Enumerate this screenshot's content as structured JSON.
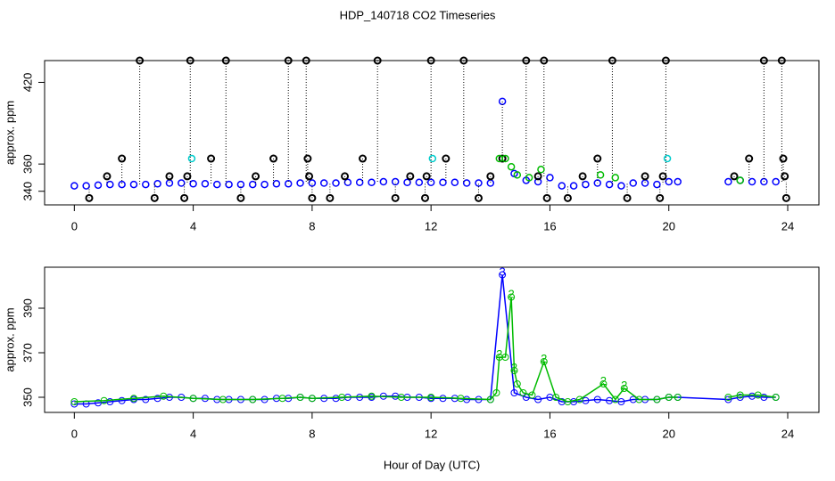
{
  "chart_data": [
    {
      "type": "scatter",
      "title": "HDP_140718  CO2 Timeseries",
      "ylabel": "approx. ppm",
      "xlim": [
        -1,
        25.05
      ],
      "xticks": [
        0,
        4,
        8,
        12,
        16,
        20,
        24
      ],
      "ylim": [
        330,
        436
      ],
      "yticks": [
        340,
        360,
        420
      ],
      "series": [
        {
          "color": "#0000ff",
          "x": [
            0,
            0.4,
            0.8,
            1.2,
            1.6,
            2,
            2.4,
            2.8,
            3.2,
            3.6,
            4,
            4.4,
            4.8,
            5.2,
            5.6,
            6,
            6.4,
            6.8,
            7.2,
            7.6,
            8,
            8.4,
            8.8,
            9.2,
            9.6,
            10,
            10.4,
            10.8,
            11.2,
            11.6,
            12,
            12.4,
            12.8,
            13.2,
            13.6,
            14,
            14.4,
            14.8,
            15.2,
            15.6,
            16,
            16.4,
            16.8,
            17.2,
            17.6,
            18,
            18.4,
            18.8,
            19.2,
            19.6,
            20,
            20.3,
            22,
            22.4,
            22.8,
            23.2,
            23.6
          ],
          "values": [
            344,
            344,
            344.5,
            345,
            345,
            345,
            345,
            345.5,
            346,
            346,
            345.5,
            345.5,
            345,
            345,
            345,
            345,
            345,
            345.5,
            345.5,
            346,
            346,
            346,
            346,
            346.5,
            346.5,
            346.5,
            347,
            347,
            346.5,
            346.5,
            346.5,
            346.5,
            346.5,
            346,
            346,
            346,
            406,
            353,
            348,
            347,
            350,
            344,
            344,
            345,
            346,
            345,
            344,
            346,
            346,
            345,
            347,
            347,
            347,
            348,
            347,
            347,
            347
          ]
        },
        {
          "color": "#000000",
          "drop_lines": true,
          "x": [
            0.5,
            1.1,
            1.6,
            2.2,
            2.7,
            3.2,
            3.7,
            3.8,
            3.9,
            4.6,
            5.1,
            5.6,
            6.1,
            6.7,
            7.2,
            7.8,
            7.85,
            7.9,
            8,
            8.6,
            9.1,
            9.7,
            10.2,
            10.8,
            11.3,
            11.8,
            11.85,
            12,
            12.5,
            13.1,
            13.6,
            14,
            14.4,
            15.2,
            15.6,
            15.8,
            15.9,
            16.6,
            17.1,
            17.6,
            18.1,
            18.6,
            19.2,
            19.7,
            19.8,
            19.9,
            22.2,
            22.7,
            23.2,
            23.8,
            23.85,
            23.9,
            23.95
          ],
          "values": [
            335,
            351,
            364,
            436,
            335,
            351,
            335,
            351,
            436,
            364,
            436,
            335,
            351,
            364,
            436,
            436,
            364,
            351,
            335,
            335,
            351,
            364,
            436,
            335,
            351,
            335,
            351,
            436,
            364,
            436,
            335,
            351,
            364,
            436,
            351,
            436,
            335,
            335,
            351,
            364,
            436,
            335,
            351,
            335,
            351,
            436,
            351,
            364,
            436,
            436,
            364,
            351,
            335
          ]
        },
        {
          "color": "#00cccc",
          "x": [
            3.95,
            12.05,
            19.95
          ],
          "values": [
            364,
            364,
            364
          ]
        },
        {
          "color": "#00bb00",
          "x": [
            14.3,
            14.5,
            14.7,
            14.9,
            15.3,
            15.7,
            17.7,
            18.2,
            22.4
          ],
          "values": [
            364,
            364,
            358,
            352,
            350,
            356,
            352,
            350,
            348
          ]
        }
      ]
    },
    {
      "type": "line",
      "ylabel": "approx. ppm",
      "xlabel": "Hour of Day (UTC)",
      "xlim": [
        -1,
        25.05
      ],
      "xticks": [
        0,
        4,
        8,
        12,
        16,
        20,
        24
      ],
      "ylim": [
        343.2,
        408.4
      ],
      "yticks": [
        350,
        370,
        390
      ],
      "series": [
        {
          "color": "#0000ff",
          "x": [
            0,
            0.4,
            0.8,
            1.2,
            1.6,
            2,
            2.4,
            2.8,
            3.2,
            3.6,
            4,
            4.4,
            4.8,
            5.2,
            5.6,
            6,
            6.4,
            6.8,
            7.2,
            7.6,
            8,
            8.4,
            8.8,
            9.2,
            9.6,
            10,
            10.4,
            10.8,
            11.2,
            11.6,
            12,
            12.4,
            12.8,
            13.2,
            13.6,
            14,
            14.4,
            14.8,
            15.2,
            15.6,
            16,
            16.4,
            16.8,
            17.2,
            17.6,
            18,
            18.4,
            18.8,
            19.2,
            19.6,
            20,
            20.3,
            22,
            22.4,
            22.8,
            23.2,
            23.6
          ],
          "values": [
            347,
            347,
            347.5,
            348,
            348.5,
            349,
            349,
            349.5,
            350,
            350,
            349.5,
            349.5,
            349,
            349,
            349,
            349,
            349,
            349.5,
            349.5,
            350,
            349.5,
            349.5,
            349.5,
            350,
            350,
            350,
            350.5,
            350.5,
            350,
            350,
            349.5,
            349.5,
            349.5,
            349,
            349,
            349,
            405,
            352,
            350,
            349,
            350,
            348,
            348,
            348.5,
            349,
            348.5,
            348,
            349,
            349,
            349,
            350,
            350,
            349,
            350,
            350.5,
            350,
            350
          ]
        },
        {
          "color": "#00bb00",
          "x": [
            0,
            1,
            2,
            3,
            4,
            5,
            6,
            7,
            7.6,
            8,
            9,
            10,
            11,
            12,
            13,
            14,
            14.2,
            14.3,
            14.5,
            14.7,
            14.8,
            14.9,
            15.1,
            15.4,
            15.8,
            16.2,
            16.6,
            17,
            17.8,
            18.2,
            18.5,
            19,
            19.6,
            20,
            20.3,
            21,
            22,
            22.4,
            23,
            23.6
          ],
          "values": [
            348,
            348.5,
            349.5,
            350.5,
            349.5,
            349,
            349,
            349.5,
            350,
            349.5,
            350,
            350.5,
            350,
            350,
            349.5,
            349,
            352,
            368,
            368,
            395,
            362,
            356,
            352,
            351,
            366,
            350,
            348,
            349,
            356,
            349,
            354,
            349,
            349,
            350,
            350,
            null,
            350,
            351,
            351,
            350
          ]
        }
      ],
      "point_labels": [
        {
          "text": "3",
          "x": 14.4,
          "y": 406,
          "color": "#0000ff"
        },
        {
          "text": "2",
          "x": 14.7,
          "y": 396,
          "color": "#00bb00"
        },
        {
          "text": "2",
          "x": 14.3,
          "y": 369,
          "color": "#00bb00"
        },
        {
          "text": "2",
          "x": 14.8,
          "y": 363,
          "color": "#00bb00"
        },
        {
          "text": "2",
          "x": 15.8,
          "y": 367,
          "color": "#00bb00"
        },
        {
          "text": "2",
          "x": 17.8,
          "y": 357,
          "color": "#00bb00"
        },
        {
          "text": "2",
          "x": 18.5,
          "y": 355,
          "color": "#00bb00"
        }
      ]
    }
  ]
}
